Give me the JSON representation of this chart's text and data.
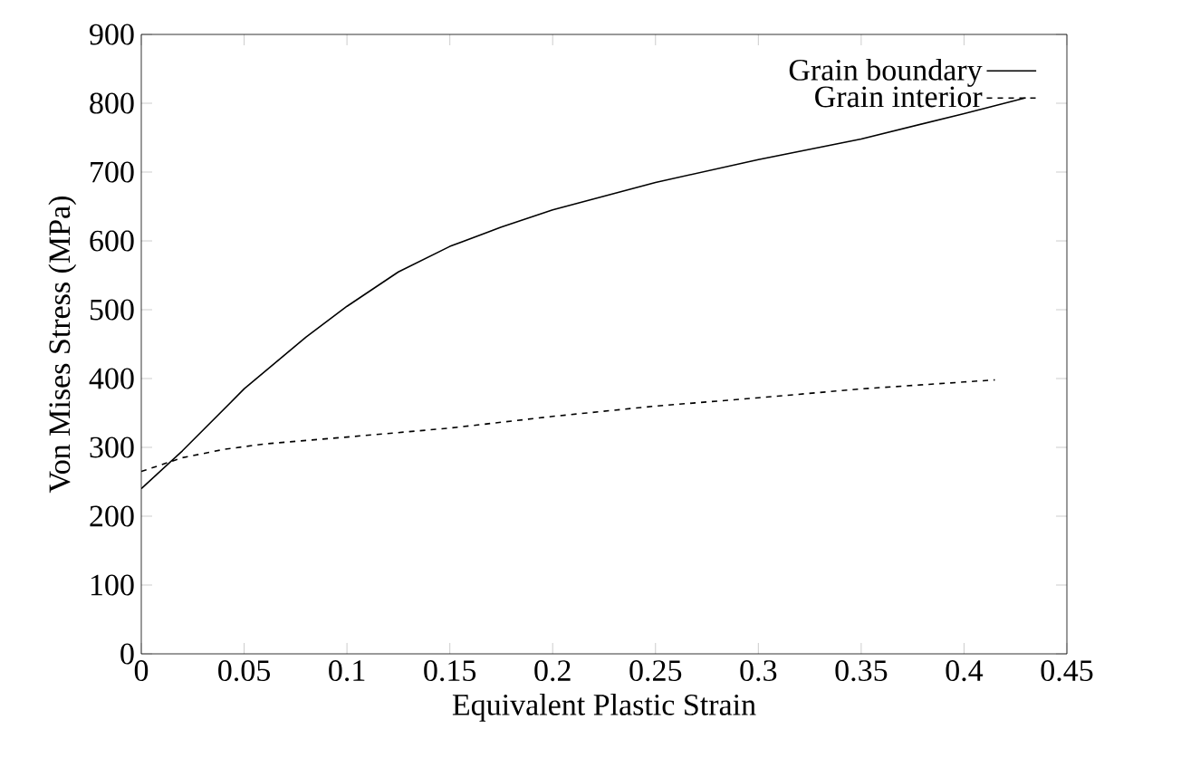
{
  "chart_data": {
    "type": "line",
    "xlabel": "Equivalent Plastic Strain",
    "ylabel": "Von Mises Stress (MPa)",
    "xlim": [
      0,
      0.45
    ],
    "ylim": [
      0,
      900
    ],
    "xticks": [
      0,
      0.05,
      0.1,
      0.15,
      0.2,
      0.25,
      0.3,
      0.35,
      0.4,
      0.45
    ],
    "yticks": [
      0,
      100,
      200,
      300,
      400,
      500,
      600,
      700,
      800,
      900
    ],
    "legend": "top right",
    "grid": false,
    "marker": "none",
    "series": [
      {
        "name": "Grain boundary",
        "color": "#000000",
        "line_style": "solid",
        "x": [
          0,
          0.02,
          0.05,
          0.08,
          0.1,
          0.125,
          0.15,
          0.175,
          0.2,
          0.25,
          0.3,
          0.35,
          0.4,
          0.43
        ],
        "values": [
          240,
          295,
          385,
          460,
          505,
          555,
          592,
          620,
          645,
          685,
          718,
          748,
          785,
          808
        ]
      },
      {
        "name": "Grain interior",
        "color": "#000000",
        "line_style": "dashed",
        "x": [
          0,
          0.02,
          0.04,
          0.06,
          0.1,
          0.15,
          0.2,
          0.25,
          0.3,
          0.35,
          0.4,
          0.415
        ],
        "values": [
          265,
          285,
          297,
          305,
          315,
          328,
          345,
          360,
          372,
          385,
          395,
          398
        ]
      }
    ]
  }
}
